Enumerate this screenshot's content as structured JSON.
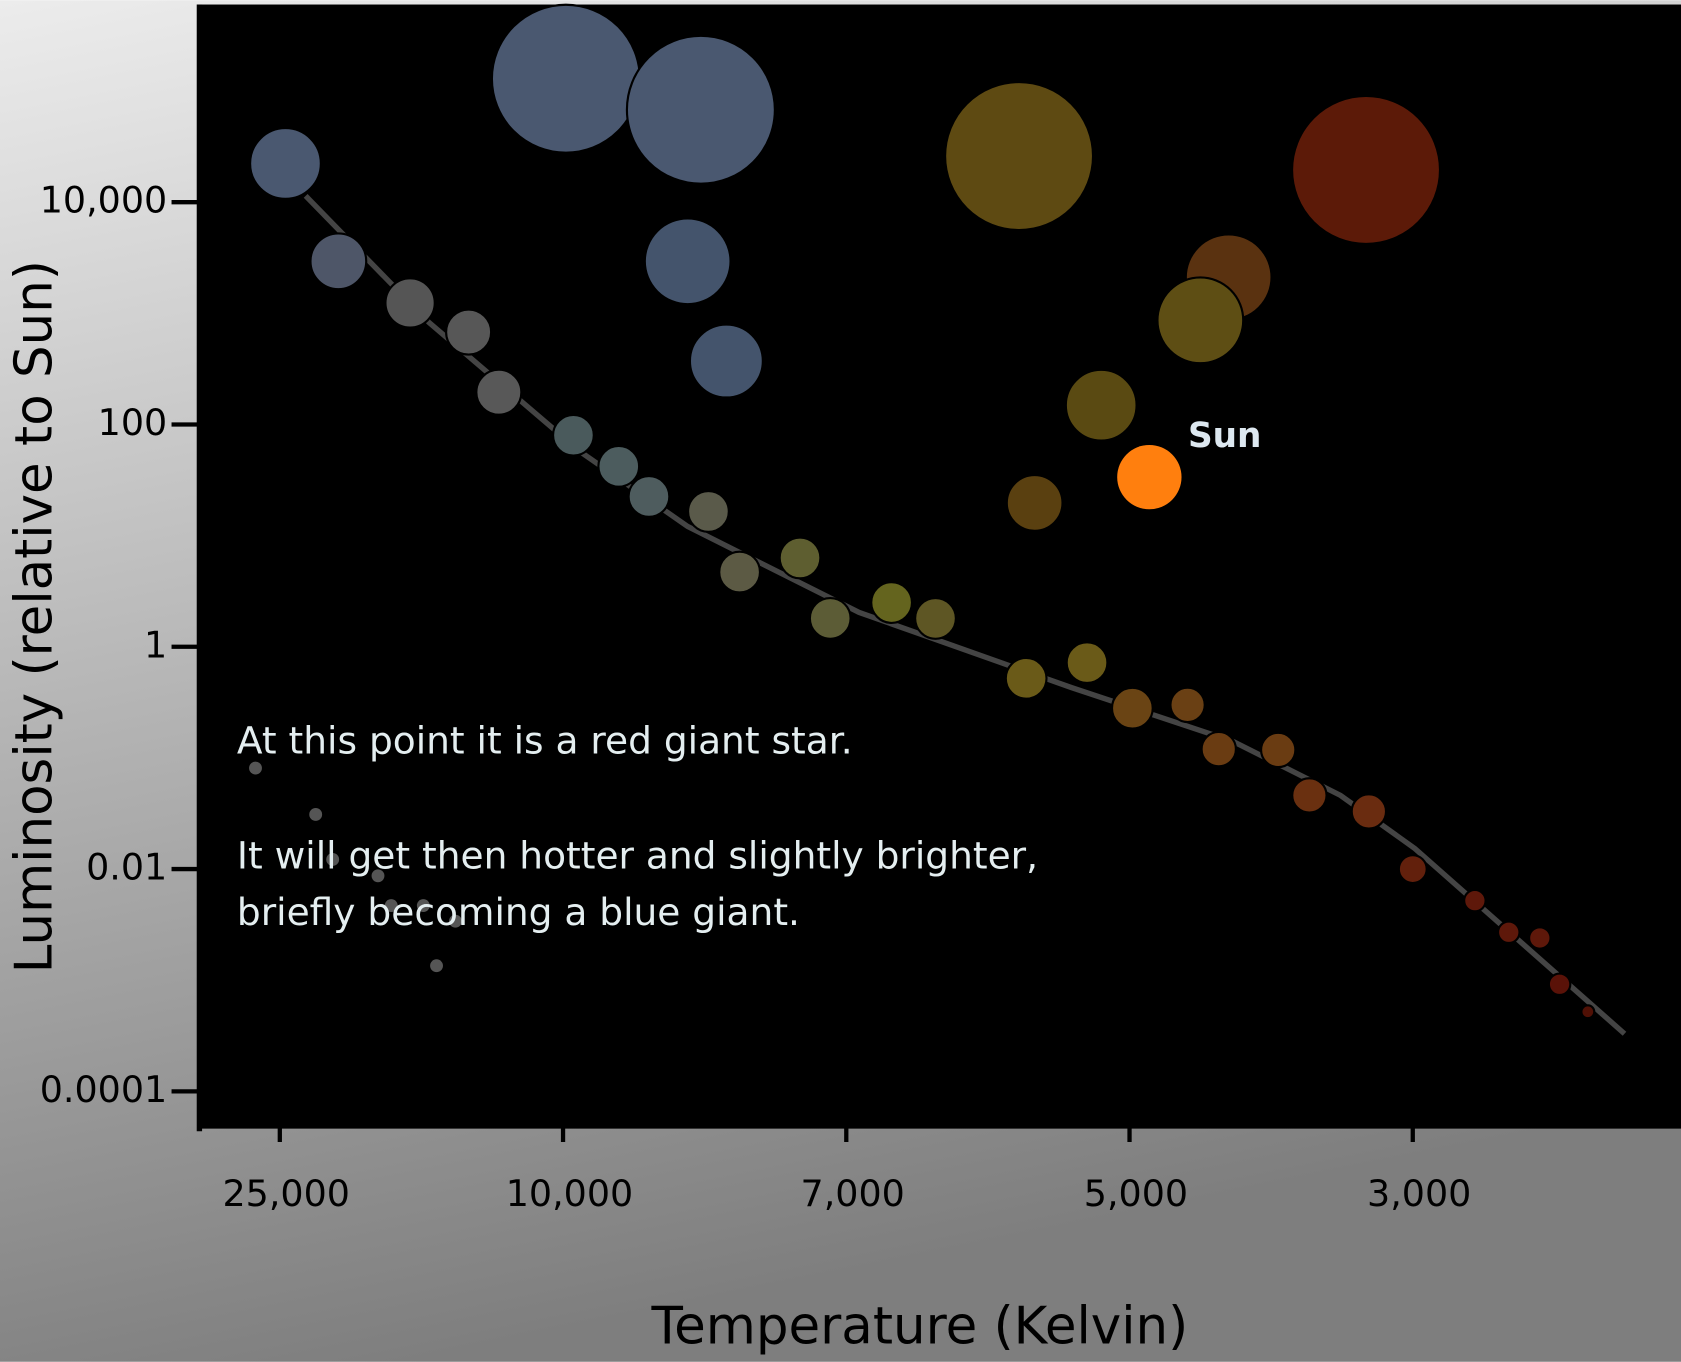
{
  "chart_data": {
    "type": "scatter",
    "x_label": "Temperature (Kelvin)",
    "y_label": "Luminosity (relative to Sun)",
    "x": [
      24700,
      21900,
      18100,
      15000,
      13400,
      9890,
      9410,
      9090,
      8460,
      8130,
      7490,
      7170,
      6680,
      6370,
      5730,
      5300,
      4980,
      4590,
      4370,
      3950,
      3730,
      3310,
      3000,
      2560,
      2320,
      2100,
      1960,
      1760,
      9970,
      8540,
      8680,
      8270,
      5780,
      3330,
      4300,
      4500,
      5200,
      5670
    ],
    "values": [
      22300,
      2940,
      1240,
      678,
      195,
      80,
      42,
      22.5,
      16.5,
      4.7,
      6.3,
      1.8,
      2.5,
      1.8,
      0.52,
      0.72,
      0.28,
      0.3,
      0.12,
      0.118,
      0.046,
      0.033,
      0.01,
      0.0052,
      0.0027,
      0.0024,
      0.00092,
      0.00052,
      129000,
      67800,
      2940,
      372,
      26000,
      19500,
      2110,
      865,
      149,
      19.7
    ],
    "sizes": [
      33,
      26,
      23,
      21,
      21,
      19,
      19,
      19,
      19,
      19,
      19,
      19,
      19,
      19,
      19,
      19,
      19,
      16,
      16,
      16,
      16,
      16,
      13,
      10,
      10,
      10,
      10,
      6,
      69,
      69,
      40,
      34,
      69,
      69,
      40,
      40,
      33,
      26
    ],
    "colors": [
      "#4a5870",
      "#4e5668",
      "#555555",
      "#575757",
      "#585858",
      "#4a5a5c",
      "#4c5c5e",
      "#4e5c5e",
      "#5a5a4a",
      "#5c5a44",
      "#5e5e30",
      "#5c5c36",
      "#64641e",
      "#5e5624",
      "#6a5a18",
      "#6a5a18",
      "#6a4414",
      "#6a4014",
      "#6a3c12",
      "#6a3c12",
      "#6a3010",
      "#6a2c10",
      "#62200c",
      "#5e180a",
      "#5e180a",
      "#5e180a",
      "#5a1208",
      "#501005",
      "#4a5870",
      "#4a5870",
      "#44546c",
      "#44546c",
      "#5e4a12",
      "#5c1a08",
      "#5a3210",
      "#5e4e14",
      "#5a4a12",
      "#5a4010"
    ],
    "xlim": [
      29300,
      1100
    ],
    "xticks": [
      {
        "value": 25000,
        "label": "25,000"
      },
      {
        "value": 10000,
        "label": "10,000"
      },
      {
        "value": 7000,
        "label": "7,000"
      },
      {
        "value": 5000,
        "label": "5,000"
      },
      {
        "value": 3000,
        "label": "3,000"
      }
    ],
    "ylim": [
      5e-05,
      600000
    ],
    "yticks": [
      0.0001,
      0.01,
      1,
      100,
      {
        "value": 10000,
        "label": "10,000"
      }
    ],
    "log_y": true,
    "main_sequence": {
      "x": [
        23630,
        17100,
        9820,
        8680,
        6910,
        5410,
        4270,
        3510,
        2985,
        2380,
        1500
      ],
      "values": [
        11400,
        828,
        57,
        12.1,
        2.04,
        0.43,
        0.141,
        0.046,
        0.0153,
        0.0032,
        0.00033
      ],
      "color": "#444444"
    },
    "white_dwarfs": {
      "x": [
        26300,
        23100,
        22200,
        19800,
        19100,
        17400,
        15700,
        16700
      ],
      "values": [
        0.081,
        0.031,
        0.0122,
        0.0087,
        0.0047,
        0.0047,
        0.0034,
        0.00135
      ],
      "color": "#555555"
    },
    "sun": {
      "label": "Sun",
      "x": 4860,
      "value": 33.6,
      "size": 30,
      "color": "#ff7f0e"
    },
    "annotation": [
      "At this point it is a red giant star.",
      "It will get then hotter and slightly brighter,",
      "briefly becoming a blue giant."
    ]
  }
}
